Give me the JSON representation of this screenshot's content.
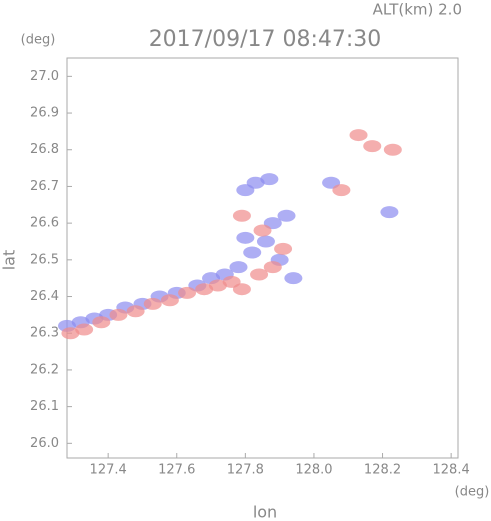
{
  "chart_data": {
    "type": "scatter",
    "annotation": "ALT(km) 2.0",
    "title": "2017/09/17 08:47:30",
    "y_unit": "(deg)",
    "x_unit": "(deg)",
    "xlabel": "lon",
    "ylabel": "lat",
    "xlim": [
      127.28,
      128.42
    ],
    "ylim": [
      25.96,
      27.05
    ],
    "xticks": [
      127.4,
      127.6,
      127.8,
      {
        "value": 128,
        "label": "128.0"
      },
      128.2,
      128.4
    ],
    "yticks": [
      {
        "value": 26,
        "label": "26.0"
      },
      26.1,
      26.2,
      26.3,
      26.4,
      26.5,
      26.6,
      26.7,
      26.8,
      26.9,
      {
        "value": 27,
        "label": "27.0"
      }
    ],
    "series": [
      {
        "color": "#8c8cf0",
        "x": [
          127.28,
          127.32,
          127.36,
          127.4,
          127.45,
          127.5,
          127.55,
          127.6,
          127.66,
          127.7,
          127.74,
          127.78,
          127.82,
          127.86,
          127.88,
          127.92,
          127.9,
          127.8,
          127.83,
          127.87,
          127.8,
          128.05,
          128.22,
          127.94
        ],
        "values": [
          26.32,
          26.33,
          26.34,
          26.35,
          26.37,
          26.38,
          26.4,
          26.41,
          26.43,
          26.45,
          26.46,
          26.48,
          26.52,
          26.55,
          26.6,
          26.62,
          26.5,
          26.56,
          26.71,
          26.72,
          26.69,
          26.71,
          26.63,
          26.45
        ]
      },
      {
        "color": "#f08c8c",
        "x": [
          127.29,
          127.33,
          127.38,
          127.43,
          127.48,
          127.53,
          127.58,
          127.63,
          127.68,
          127.72,
          127.76,
          127.79,
          127.84,
          127.88,
          127.85,
          127.79,
          128.13,
          128.17,
          128.23,
          128.08,
          127.91
        ],
        "values": [
          26.3,
          26.31,
          26.33,
          26.35,
          26.36,
          26.38,
          26.39,
          26.41,
          26.42,
          26.43,
          26.44,
          26.42,
          26.46,
          26.48,
          26.58,
          26.62,
          26.84,
          26.81,
          26.8,
          26.69,
          26.53
        ]
      }
    ]
  }
}
